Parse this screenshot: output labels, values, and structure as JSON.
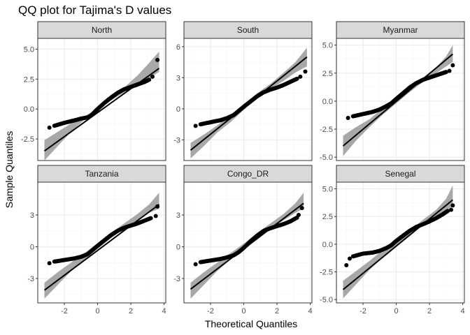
{
  "chart_data": {
    "type": "scatter",
    "title": "QQ plot for Tajima's D values",
    "xlabel": "Theoretical Quantiles",
    "ylabel": "Sample Quantiles",
    "grid": true,
    "x_ticks": [
      -2,
      0,
      2,
      4
    ],
    "xlim": [
      -3.6,
      4.1
    ],
    "colors": {
      "points": "#000000",
      "line": "#000000",
      "band": "#999999",
      "strip_fill": "#d9d9d9",
      "panel_border": "#333333",
      "grid_major": "#ebebeb",
      "grid_minor": "#f5f5f5"
    },
    "panels": [
      {
        "name": "North",
        "ylim": [
          -4.3,
          5.9
        ],
        "y_ticks": [
          -2.5,
          0,
          2.5,
          5
        ],
        "y_tick_labels": [
          "-2.5",
          "0.0",
          "2.5",
          "5.0"
        ],
        "line": {
          "x": [
            -3.2,
            3.7
          ],
          "y": [
            -3.5,
            3.4
          ]
        },
        "band_upper": [
          [
            -3.2,
            -2.6
          ],
          [
            -2.4,
            -1.9
          ],
          [
            -1.6,
            -1.2
          ],
          [
            -0.8,
            -0.6
          ],
          [
            0,
            0
          ],
          [
            0.8,
            0.9
          ],
          [
            1.6,
            1.8
          ],
          [
            2.4,
            2.8
          ],
          [
            3.0,
            3.7
          ],
          [
            3.7,
            4.8
          ]
        ],
        "band_lower": [
          [
            -3.2,
            -4.3
          ],
          [
            -2.4,
            -3.1
          ],
          [
            -1.6,
            -1.9
          ],
          [
            -0.8,
            -0.9
          ],
          [
            0,
            0
          ],
          [
            0.8,
            0.7
          ],
          [
            1.6,
            1.4
          ],
          [
            2.4,
            2.0
          ],
          [
            3.0,
            2.5
          ],
          [
            3.7,
            3.1
          ]
        ],
        "curve": [
          [
            -2.6,
            -1.4
          ],
          [
            -2.0,
            -1.15
          ],
          [
            -1.4,
            -0.95
          ],
          [
            -1.0,
            -0.8
          ],
          [
            -0.6,
            -0.7
          ],
          [
            -0.4,
            -0.55
          ],
          [
            0,
            0
          ],
          [
            0.4,
            0.5
          ],
          [
            0.8,
            0.95
          ],
          [
            1.2,
            1.35
          ],
          [
            1.6,
            1.65
          ],
          [
            2.0,
            1.85
          ],
          [
            2.4,
            2.05
          ],
          [
            2.8,
            2.25
          ],
          [
            3.1,
            2.45
          ]
        ],
        "tail_points": [
          [
            -2.9,
            -1.55
          ],
          [
            3.3,
            2.7
          ],
          [
            3.6,
            4.1
          ]
        ]
      },
      {
        "name": "South",
        "ylim": [
          -5.0,
          6.8
        ],
        "y_ticks": [
          -3,
          0,
          3,
          6
        ],
        "y_tick_labels": [
          "-3",
          "0",
          "3",
          "6"
        ],
        "line": {
          "x": [
            -3.2,
            3.8
          ],
          "y": [
            -4.0,
            5.0
          ]
        },
        "band_upper": [
          [
            -3.2,
            -3.3
          ],
          [
            -2.4,
            -2.5
          ],
          [
            -1.6,
            -1.6
          ],
          [
            -0.8,
            -0.6
          ],
          [
            0,
            0.4
          ],
          [
            0.8,
            1.5
          ],
          [
            1.6,
            2.4
          ],
          [
            2.4,
            3.5
          ],
          [
            3.1,
            4.5
          ],
          [
            3.8,
            5.9
          ]
        ],
        "band_lower": [
          [
            -3.2,
            -4.8
          ],
          [
            -2.4,
            -3.6
          ],
          [
            -1.6,
            -2.3
          ],
          [
            -0.8,
            -1.3
          ],
          [
            0,
            -0.1
          ],
          [
            0.8,
            1.0
          ],
          [
            1.6,
            1.9
          ],
          [
            2.4,
            2.7
          ],
          [
            3.1,
            3.5
          ],
          [
            3.8,
            4.1
          ]
        ],
        "curve": [
          [
            -2.6,
            -1.5
          ],
          [
            -2.0,
            -1.3
          ],
          [
            -1.4,
            -1.1
          ],
          [
            -1.0,
            -0.9
          ],
          [
            -0.6,
            -0.6
          ],
          [
            -0.3,
            -0.2
          ],
          [
            0,
            0.2
          ],
          [
            0.4,
            0.7
          ],
          [
            0.8,
            1.2
          ],
          [
            1.2,
            1.6
          ],
          [
            1.6,
            1.85
          ],
          [
            2.0,
            2.05
          ],
          [
            2.4,
            2.3
          ],
          [
            2.8,
            2.6
          ],
          [
            3.2,
            2.9
          ]
        ],
        "tail_points": [
          [
            -2.9,
            -1.65
          ],
          [
            3.4,
            3.1
          ],
          [
            3.7,
            3.6
          ]
        ]
      },
      {
        "name": "Myanmar",
        "ylim": [
          -5.3,
          5.6
        ],
        "y_ticks": [
          -5,
          -2.5,
          0,
          2.5,
          5
        ],
        "y_tick_labels": [
          "-5.0",
          "-2.5",
          "0.0",
          "2.5",
          "5.0"
        ],
        "line": {
          "x": [
            -3.2,
            3.4
          ],
          "y": [
            -4.0,
            4.2
          ]
        },
        "band_upper": [
          [
            -3.2,
            -3.1
          ],
          [
            -2.4,
            -2.3
          ],
          [
            -1.6,
            -1.6
          ],
          [
            -0.8,
            -0.6
          ],
          [
            0,
            0.2
          ],
          [
            0.8,
            1.2
          ],
          [
            1.6,
            2.1
          ],
          [
            2.4,
            3.0
          ],
          [
            3.0,
            4.0
          ],
          [
            3.4,
            5.0
          ]
        ],
        "band_lower": [
          [
            -3.2,
            -4.9
          ],
          [
            -2.4,
            -3.5
          ],
          [
            -1.6,
            -2.3
          ],
          [
            -0.8,
            -1.2
          ],
          [
            0,
            -0.2
          ],
          [
            0.8,
            0.8
          ],
          [
            1.6,
            1.7
          ],
          [
            2.4,
            2.5
          ],
          [
            3.0,
            3.1
          ],
          [
            3.4,
            3.5
          ]
        ],
        "curve": [
          [
            -2.6,
            -1.35
          ],
          [
            -2.0,
            -1.15
          ],
          [
            -1.4,
            -0.95
          ],
          [
            -1.0,
            -0.75
          ],
          [
            -0.6,
            -0.45
          ],
          [
            -0.3,
            -0.2
          ],
          [
            0,
            0.2
          ],
          [
            0.4,
            0.7
          ],
          [
            0.8,
            1.2
          ],
          [
            1.2,
            1.6
          ],
          [
            1.6,
            1.9
          ],
          [
            2.0,
            2.1
          ],
          [
            2.4,
            2.3
          ],
          [
            2.8,
            2.5
          ],
          [
            3.0,
            2.6
          ]
        ],
        "tail_points": [
          [
            -2.9,
            -1.5
          ],
          [
            3.2,
            2.7
          ],
          [
            3.4,
            3.2
          ]
        ]
      },
      {
        "name": "Tanzania",
        "ylim": [
          -5.3,
          6.1
        ],
        "y_ticks": [
          -3,
          0,
          3
        ],
        "y_tick_labels": [
          "-3",
          "0",
          "3"
        ],
        "line": {
          "x": [
            -3.2,
            3.7
          ],
          "y": [
            -4.1,
            4.0
          ]
        },
        "band_upper": [
          [
            -3.2,
            -3.4
          ],
          [
            -2.4,
            -2.4
          ],
          [
            -1.6,
            -1.5
          ],
          [
            -0.8,
            -0.6
          ],
          [
            0,
            0.3
          ],
          [
            0.8,
            1.3
          ],
          [
            1.6,
            2.2
          ],
          [
            2.4,
            3.1
          ],
          [
            3.1,
            4.0
          ],
          [
            3.7,
            5.1
          ]
        ],
        "band_lower": [
          [
            -3.2,
            -4.9
          ],
          [
            -2.4,
            -3.6
          ],
          [
            -1.6,
            -2.3
          ],
          [
            -0.8,
            -1.2
          ],
          [
            0,
            -0.2
          ],
          [
            0.8,
            0.8
          ],
          [
            1.6,
            1.7
          ],
          [
            2.4,
            2.5
          ],
          [
            3.1,
            3.2
          ],
          [
            3.7,
            3.6
          ]
        ],
        "curve": [
          [
            -2.6,
            -1.4
          ],
          [
            -2.0,
            -1.25
          ],
          [
            -1.4,
            -1.1
          ],
          [
            -1.0,
            -0.95
          ],
          [
            -0.6,
            -0.7
          ],
          [
            -0.3,
            -0.3
          ],
          [
            0,
            0.1
          ],
          [
            0.4,
            0.6
          ],
          [
            0.8,
            1.1
          ],
          [
            1.2,
            1.5
          ],
          [
            1.6,
            1.8
          ],
          [
            2.0,
            2.0
          ],
          [
            2.4,
            2.2
          ],
          [
            2.8,
            2.45
          ],
          [
            3.2,
            2.7
          ]
        ],
        "tail_points": [
          [
            -2.9,
            -1.55
          ],
          [
            3.5,
            2.9
          ],
          [
            3.6,
            3.8
          ]
        ]
      },
      {
        "name": "Congo_DR",
        "ylim": [
          -5.3,
          6.1
        ],
        "y_ticks": [
          -3,
          0,
          3
        ],
        "y_tick_labels": [
          "-3",
          "0",
          "3"
        ],
        "line": {
          "x": [
            -3.2,
            3.6
          ],
          "y": [
            -4.0,
            4.1
          ]
        },
        "band_upper": [
          [
            -3.2,
            -3.4
          ],
          [
            -2.4,
            -2.4
          ],
          [
            -1.6,
            -1.5
          ],
          [
            -0.8,
            -0.6
          ],
          [
            0,
            0.3
          ],
          [
            0.8,
            1.3
          ],
          [
            1.6,
            2.2
          ],
          [
            2.4,
            3.1
          ],
          [
            3.1,
            4.1
          ],
          [
            3.6,
            5.1
          ]
        ],
        "band_lower": [
          [
            -3.2,
            -4.9
          ],
          [
            -2.4,
            -3.6
          ],
          [
            -1.6,
            -2.3
          ],
          [
            -0.8,
            -1.2
          ],
          [
            0,
            -0.2
          ],
          [
            0.8,
            0.8
          ],
          [
            1.6,
            1.7
          ],
          [
            2.4,
            2.5
          ],
          [
            3.1,
            3.2
          ],
          [
            3.6,
            3.6
          ]
        ],
        "curve": [
          [
            -2.6,
            -1.45
          ],
          [
            -2.0,
            -1.3
          ],
          [
            -1.4,
            -1.15
          ],
          [
            -1.0,
            -1.0
          ],
          [
            -0.6,
            -0.8
          ],
          [
            -0.3,
            -0.5
          ],
          [
            0,
            -0.1
          ],
          [
            0.4,
            0.5
          ],
          [
            0.8,
            1.05
          ],
          [
            1.2,
            1.5
          ],
          [
            1.6,
            1.75
          ],
          [
            2.0,
            1.95
          ],
          [
            2.4,
            2.15
          ],
          [
            2.8,
            2.4
          ],
          [
            3.2,
            2.75
          ]
        ],
        "tail_points": [
          [
            -2.9,
            -1.65
          ],
          [
            3.3,
            3.0
          ],
          [
            3.5,
            3.65
          ]
        ]
      },
      {
        "name": "Senegal",
        "ylim": [
          -5.3,
          5.6
        ],
        "y_ticks": [
          -5,
          -2.5,
          0,
          2.5,
          5
        ],
        "y_tick_labels": [
          "-5.0",
          "-2.5",
          "0.0",
          "2.5",
          "5.0"
        ],
        "line": {
          "x": [
            -3.2,
            3.4
          ],
          "y": [
            -4.1,
            4.0
          ]
        },
        "band_upper": [
          [
            -3.2,
            -3.3
          ],
          [
            -2.4,
            -2.4
          ],
          [
            -1.6,
            -1.5
          ],
          [
            -0.8,
            -0.5
          ],
          [
            0,
            0.2
          ],
          [
            0.8,
            1.2
          ],
          [
            1.6,
            2.2
          ],
          [
            2.4,
            3.1
          ],
          [
            3.0,
            4.1
          ],
          [
            3.4,
            5.3
          ]
        ],
        "band_lower": [
          [
            -3.2,
            -4.9
          ],
          [
            -2.4,
            -3.6
          ],
          [
            -1.6,
            -2.3
          ],
          [
            -0.8,
            -1.2
          ],
          [
            0,
            -0.2
          ],
          [
            0.8,
            0.8
          ],
          [
            1.6,
            1.7
          ],
          [
            2.4,
            2.5
          ],
          [
            3.0,
            3.1
          ],
          [
            3.4,
            3.4
          ]
        ],
        "curve": [
          [
            -2.6,
            -1.1
          ],
          [
            -2.0,
            -0.85
          ],
          [
            -1.4,
            -0.75
          ],
          [
            -1.0,
            -0.6
          ],
          [
            -0.6,
            -0.35
          ],
          [
            -0.3,
            -0.1
          ],
          [
            0,
            0.3
          ],
          [
            0.4,
            0.75
          ],
          [
            0.8,
            1.2
          ],
          [
            1.2,
            1.55
          ],
          [
            1.6,
            1.8
          ],
          [
            2.0,
            2.05
          ],
          [
            2.4,
            2.35
          ],
          [
            2.8,
            2.7
          ],
          [
            3.1,
            3.0
          ]
        ],
        "tail_points": [
          [
            -3.0,
            -1.9
          ],
          [
            -2.8,
            -1.3
          ],
          [
            3.3,
            3.1
          ],
          [
            3.4,
            3.5
          ]
        ]
      }
    ]
  }
}
